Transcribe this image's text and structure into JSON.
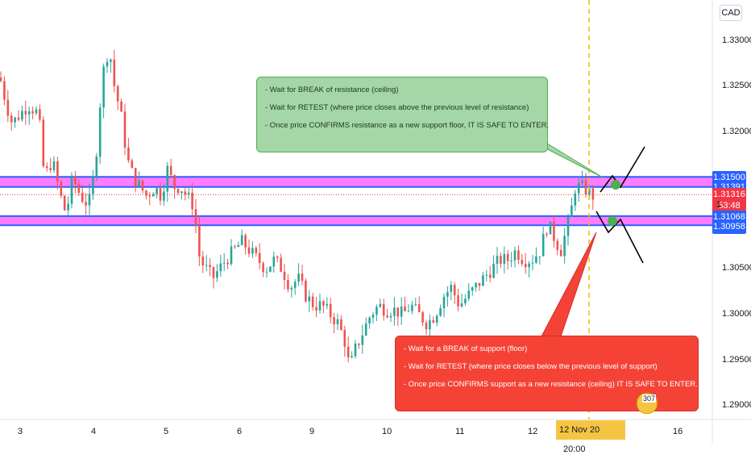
{
  "currency": "CAD",
  "chart_data": {
    "type": "candlestick",
    "y_range": [
      1.2885,
      1.3345
    ],
    "price_ticks": [
      "1.33000",
      "1.32500",
      "1.32000",
      "1.30500",
      "1.30000",
      "1.29500",
      "1.29000"
    ],
    "time_ticks": [
      "3",
      "4",
      "5",
      "6",
      "9",
      "10",
      "11",
      "12",
      "16"
    ],
    "highlighted_time": {
      "date": "12 Nov 20",
      "time": "20:00"
    },
    "zones": [
      {
        "name": "resistance",
        "from": 1.314,
        "to": 1.3151
      },
      {
        "name": "support",
        "from": 1.3098,
        "to": 1.3108
      }
    ],
    "price_markers": [
      {
        "label": "1.31500",
        "value": 1.315,
        "color": "#2962ff"
      },
      {
        "label": "1.31391",
        "value": 1.31391,
        "color": "#2962ff"
      },
      {
        "label": "1.31316",
        "value": 1.31316,
        "color": "#f23645"
      },
      {
        "label": "53:48",
        "value": 1.3119,
        "color": "#f23645"
      },
      {
        "label": "1.31068",
        "value": 1.31068,
        "color": "#2962ff"
      },
      {
        "label": "1.30958",
        "value": 1.30958,
        "color": "#2962ff"
      }
    ],
    "partial_label": "1",
    "badge": "307",
    "path": [
      [
        0,
        1.326
      ],
      [
        8,
        1.323
      ],
      [
        15,
        1.321
      ],
      [
        25,
        1.322
      ],
      [
        35,
        1.323
      ],
      [
        48,
        1.322
      ],
      [
        55,
        1.315
      ],
      [
        65,
        1.317
      ],
      [
        75,
        1.313
      ],
      [
        82,
        1.311
      ],
      [
        90,
        1.315
      ],
      [
        100,
        1.313
      ],
      [
        110,
        1.312
      ],
      [
        118,
        1.316
      ],
      [
        124,
        1.323
      ],
      [
        130,
        1.328
      ],
      [
        136,
        1.329
      ],
      [
        142,
        1.325
      ],
      [
        150,
        1.322
      ],
      [
        158,
        1.317
      ],
      [
        166,
        1.315
      ],
      [
        174,
        1.314
      ],
      [
        182,
        1.313
      ],
      [
        192,
        1.314
      ],
      [
        200,
        1.313
      ],
      [
        208,
        1.316
      ],
      [
        216,
        1.314
      ],
      [
        224,
        1.314
      ],
      [
        232,
        1.313
      ],
      [
        240,
        1.312
      ],
      [
        248,
        1.306
      ],
      [
        256,
        1.305
      ],
      [
        264,
        1.304
      ],
      [
        272,
        1.305
      ],
      [
        280,
        1.306
      ],
      [
        290,
        1.307
      ],
      [
        300,
        1.308
      ],
      [
        310,
        1.307
      ],
      [
        320,
        1.306
      ],
      [
        330,
        1.305
      ],
      [
        340,
        1.306
      ],
      [
        350,
        1.305
      ],
      [
        360,
        1.303
      ],
      [
        370,
        1.304
      ],
      [
        380,
        1.302
      ],
      [
        390,
        1.301
      ],
      [
        400,
        1.301
      ],
      [
        410,
        1.3
      ],
      [
        420,
        1.299
      ],
      [
        428,
        1.297
      ],
      [
        434,
        1.294
      ],
      [
        440,
        1.296
      ],
      [
        450,
        1.298
      ],
      [
        460,
        1.3
      ],
      [
        470,
        1.301
      ],
      [
        480,
        1.3005
      ],
      [
        490,
        1.3005
      ],
      [
        500,
        1.3
      ],
      [
        510,
        1.301
      ],
      [
        520,
        1.3
      ],
      [
        530,
        1.299
      ],
      [
        540,
        1.3
      ],
      [
        550,
        1.302
      ],
      [
        560,
        1.303
      ],
      [
        570,
        1.301
      ],
      [
        580,
        1.302
      ],
      [
        590,
        1.303
      ],
      [
        600,
        1.304
      ],
      [
        610,
        1.305
      ],
      [
        620,
        1.306
      ],
      [
        630,
        1.306
      ],
      [
        640,
        1.307
      ],
      [
        650,
        1.306
      ],
      [
        660,
        1.306
      ],
      [
        670,
        1.307
      ],
      [
        680,
        1.31
      ],
      [
        690,
        1.308
      ],
      [
        696,
        1.307
      ],
      [
        702,
        1.309
      ],
      [
        708,
        1.311
      ],
      [
        714,
        1.314
      ],
      [
        722,
        1.314
      ],
      [
        730,
        1.3135
      ],
      [
        736,
        1.313
      ]
    ]
  },
  "notes": {
    "green": [
      "- Wait for BREAK of resistance (ceiling)",
      "- Wait for RETEST (where price closes above the previous level of resistance)",
      "- Once price CONFIRMS resistance as a new support floor, IT IS SAFE TO ENTER."
    ],
    "red": [
      "- Wait for a BREAK of support (floor)",
      "- Wait for RETEST (where price closes below the previous level of support)",
      "- Once price CONFIRMS support as a new resistance (ceiling) IT IS SAFE TO ENTER."
    ]
  }
}
